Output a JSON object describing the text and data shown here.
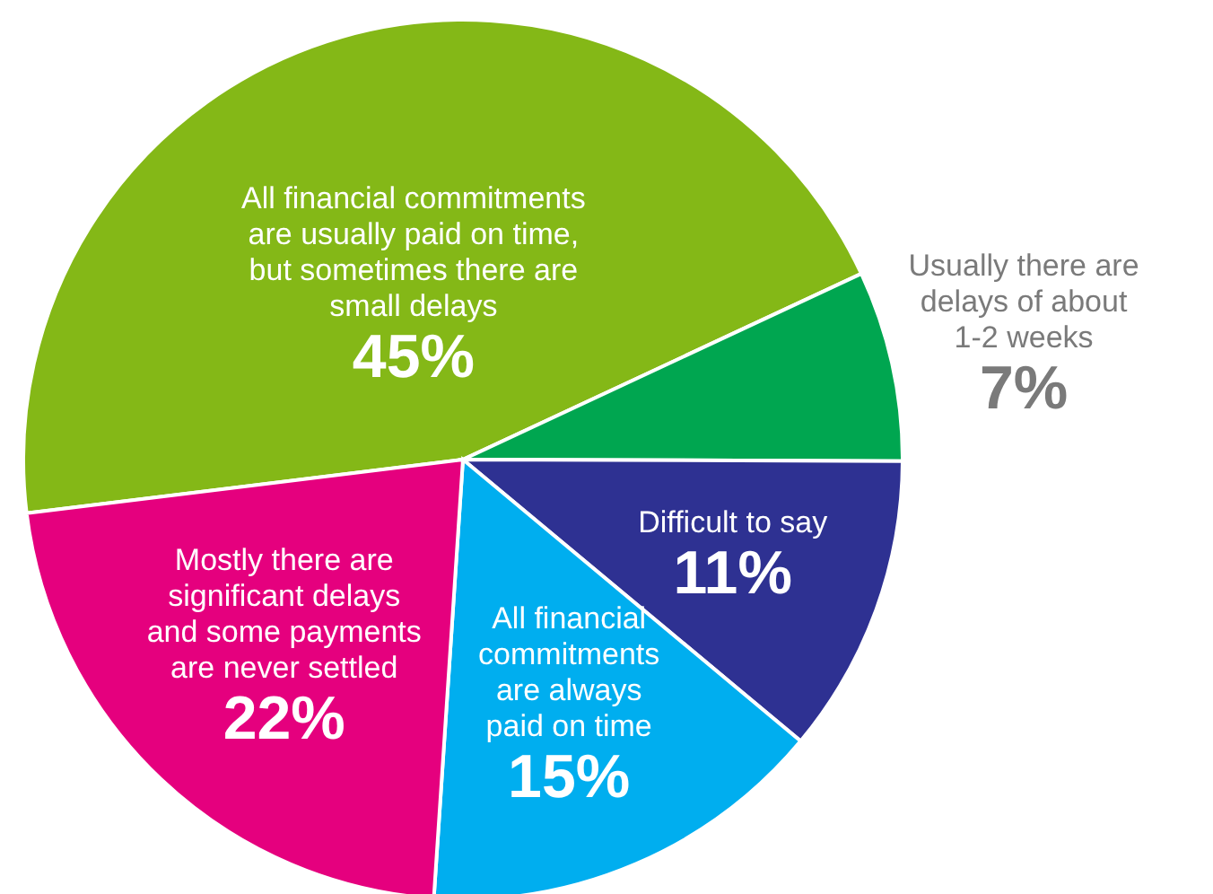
{
  "chart_data": {
    "type": "pie",
    "categories": [
      "All financial commitments are usually paid on time, but sometimes there are small delays",
      "Usually there are delays of about 1-2 weeks",
      "Difficult to say",
      "All financial commitments are always paid on time",
      "Mostly there are significant delays and some payments are never settled"
    ],
    "values": [
      45,
      7,
      11,
      15,
      22
    ],
    "value_labels": [
      "45%",
      "7%",
      "11%",
      "15%",
      "22%"
    ],
    "colors": [
      "#84b817",
      "#00a650",
      "#2e3192",
      "#00aeef",
      "#e5007e"
    ]
  }
}
